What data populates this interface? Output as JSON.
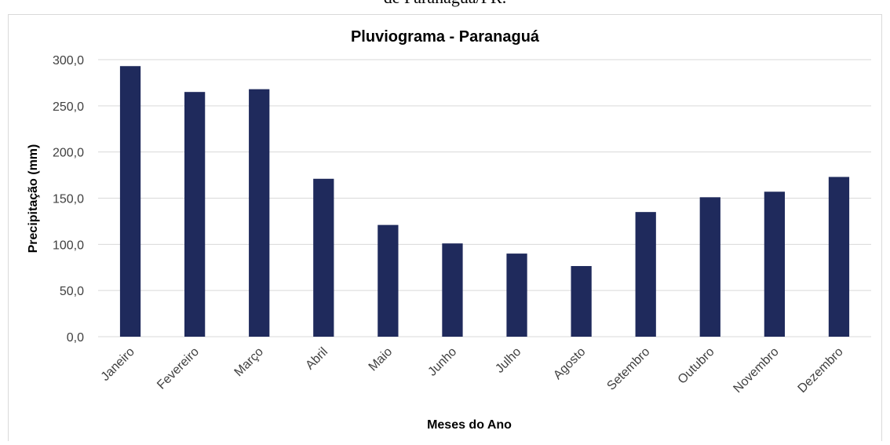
{
  "caption": "de Paranaguá/PR.",
  "chart_data": {
    "type": "bar",
    "title": "Pluviograma - Paranaguá",
    "x_label": "Meses do Ano",
    "y_label": "Precipitação (mm)",
    "categories": [
      "Janeiro",
      "Fevereiro",
      "Março",
      "Abril",
      "Maio",
      "Junho",
      "Julho",
      "Agosto",
      "Setembro",
      "Outubro",
      "Novembro",
      "Dezembro"
    ],
    "values": [
      293,
      265,
      268,
      171,
      121,
      101,
      90,
      76.5,
      135,
      151,
      157,
      173
    ],
    "color": "#1f2a5c",
    "ylim": [
      0,
      300
    ],
    "yticks": [
      {
        "value": 0,
        "label": "0,0"
      },
      {
        "value": 50,
        "label": "50,0"
      },
      {
        "value": 100,
        "label": "100,0"
      },
      {
        "value": 150,
        "label": "150,0"
      },
      {
        "value": 200,
        "label": "200,0"
      },
      {
        "value": 250,
        "label": "250,0"
      },
      {
        "value": 300,
        "label": "300,0"
      }
    ],
    "grid": true
  }
}
